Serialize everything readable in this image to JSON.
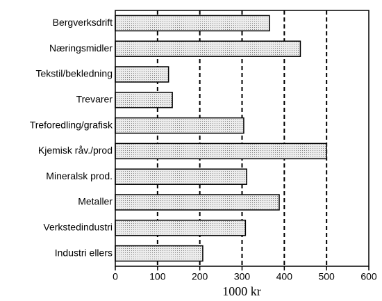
{
  "chart_data": {
    "type": "bar",
    "orientation": "horizontal",
    "x_label": "1000 kr",
    "categories": [
      "Bergverksdrift",
      "Næringsmidler",
      "Tekstil/bekledning",
      "Trevarer",
      "Treforedling/grafisk",
      "Kjemisk råv./prod",
      "Mineralsk prod.",
      "Metaller",
      "Verkstedindustri",
      "Industri ellers"
    ],
    "values": [
      365,
      438,
      126,
      135,
      304,
      500,
      311,
      388,
      308,
      207
    ],
    "color": "#dcdcdc",
    "xlim": [
      0,
      600
    ],
    "xticks": [
      0,
      100,
      200,
      300,
      400,
      500,
      600
    ],
    "grid": true
  }
}
